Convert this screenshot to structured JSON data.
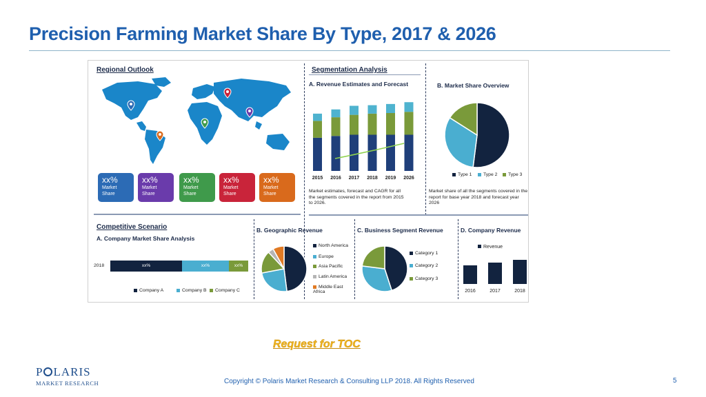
{
  "slide": {
    "title": "Precision Farming Market Share By Type, 2017 & 2026",
    "request_toc": "Request for TOC",
    "copyright": "Copyright © Polaris Market Research & Consulting LLP 2018. All Rights Reserved",
    "page_number": "5",
    "logo": {
      "main_before": "P",
      "main_after": "LARIS",
      "sub": "MARKET RESEARCH"
    }
  },
  "infographic": {
    "regional": {
      "title": "Regional Outlook",
      "boxes": [
        {
          "pct": "xx%",
          "label1": "Market",
          "label2": "Share",
          "color": "#2c6bb5"
        },
        {
          "pct": "xx%",
          "label1": "Market",
          "label2": "Share",
          "color": "#6a3bab"
        },
        {
          "pct": "xx%",
          "label1": "Market",
          "label2": "Share",
          "color": "#3f9a4b"
        },
        {
          "pct": "xx%",
          "label1": "Market",
          "label2": "Share",
          "color": "#c9243a"
        },
        {
          "pct": "xx%",
          "label1": "Market",
          "label2": "Share",
          "color": "#d96a1c"
        }
      ],
      "pin_colors": [
        "#2c6bb5",
        "#c9243a",
        "#6a3bab",
        "#3f9a4b",
        "#d96a1c"
      ]
    },
    "segmentation": {
      "title": "Segmentation Analysis",
      "revenue_title": "A. Revenue Estimates and Forecast",
      "revenue_caption": [
        "Market estimates, forecast and CAGR for all",
        "the segments covered in the report from 2015",
        "to 2026."
      ],
      "share_title": "B. Market Share Overview",
      "share_caption": [
        "Market share of all the segments covered in the",
        "report for base year 2018 and forecast year",
        "2026"
      ]
    },
    "competitive": {
      "title": "Competitive Scenario",
      "subtitle": "A. Company Market Share Analysis",
      "bar_label": "2018",
      "segment_labels": [
        "xx%",
        "xx%",
        "xx%"
      ]
    },
    "geographic_title": "B. Geographic Revenue",
    "business_title": "C. Business Segment Revenue",
    "company_title": "D. Company Revenue"
  },
  "chart_data": [
    {
      "type": "bar",
      "title": "A. Revenue Estimates and Forecast",
      "categories": [
        "2015",
        "2016",
        "2017",
        "2018",
        "2019",
        "2026"
      ],
      "series": [
        {
          "values": [
            55,
            58,
            60,
            60,
            60,
            60
          ],
          "color": "#1f3f7a"
        },
        {
          "values": [
            28,
            31,
            33,
            35,
            36,
            38
          ],
          "color": "#7a9a3a"
        },
        {
          "values": [
            12,
            13,
            15,
            14,
            15,
            16
          ],
          "color": "#4fb3cf"
        }
      ],
      "ylim": [
        0,
        120
      ]
    },
    {
      "type": "pie",
      "title": "B. Market Share Overview",
      "labels": [
        "Type 1",
        "Type 2",
        "Type 3"
      ],
      "values": [
        52,
        32,
        16
      ],
      "colors": [
        "#12233f",
        "#4aaed0",
        "#7a9a3a"
      ]
    },
    {
      "type": "bar",
      "title": "A. Company Market Share Analysis",
      "categories": [
        "2018"
      ],
      "labels": [
        "Company A",
        "Company B",
        "Company C"
      ],
      "values": [
        52,
        34,
        14
      ],
      "colors": [
        "#12233f",
        "#4aaed0",
        "#7a9a3a"
      ]
    },
    {
      "type": "pie",
      "title": "B. Geographic Revenue",
      "labels": [
        "North America",
        "Europe",
        "Asia Pacific",
        "Latin America",
        "Middle East Africa"
      ],
      "values": [
        48,
        24,
        16,
        4,
        8
      ],
      "colors": [
        "#12233f",
        "#4aaed0",
        "#7a9a3a",
        "#b5b5b5",
        "#e07a24"
      ]
    },
    {
      "type": "pie",
      "title": "C. Business Segment Revenue",
      "labels": [
        "Category 1",
        "Category 2",
        "Category 3"
      ],
      "values": [
        45,
        32,
        23
      ],
      "colors": [
        "#12233f",
        "#4aaed0",
        "#7a9a3a"
      ]
    },
    {
      "type": "bar",
      "title": "D. Company Revenue",
      "categories": [
        "2016",
        "2017",
        "2018"
      ],
      "series": [
        {
          "name": "Revenue",
          "values": [
            27,
            31,
            35
          ],
          "color": "#12233f"
        }
      ],
      "ylim": [
        0,
        40
      ]
    }
  ]
}
